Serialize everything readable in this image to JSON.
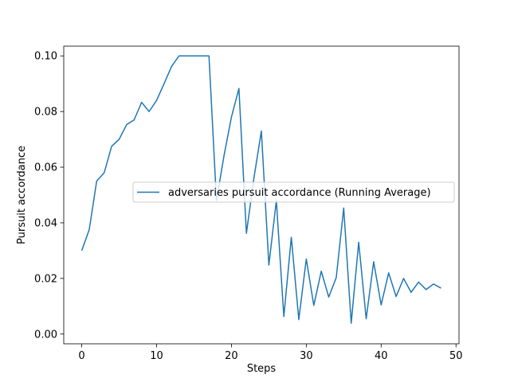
{
  "chart_data": {
    "type": "line",
    "xlabel": "Steps",
    "ylabel": "Pursuit accordance",
    "xlim": [
      -2.4,
      50.4
    ],
    "ylim": [
      -0.0035,
      0.1035
    ],
    "xticks": [
      0,
      10,
      20,
      30,
      40,
      50
    ],
    "yticks": [
      0.0,
      0.02,
      0.04,
      0.06,
      0.08,
      0.1
    ],
    "xtick_labels": [
      "0",
      "10",
      "20",
      "30",
      "40",
      "50"
    ],
    "ytick_labels": [
      "0.00",
      "0.02",
      "0.04",
      "0.06",
      "0.08",
      "0.10"
    ],
    "grid": false,
    "legend_position": "center-right",
    "series": [
      {
        "name": "adversaries pursuit accordance (Running Average)",
        "color": "#1f77b4",
        "x": [
          0,
          1,
          2,
          3,
          4,
          5,
          6,
          7,
          8,
          9,
          10,
          11,
          12,
          13,
          14,
          15,
          16,
          17,
          18,
          19,
          20,
          21,
          22,
          23,
          24,
          25,
          26,
          27,
          28,
          29,
          30,
          31,
          32,
          33,
          34,
          35,
          36,
          37,
          38,
          39,
          40,
          41,
          42,
          43,
          44,
          45,
          46,
          47,
          48
        ],
        "values": [
          0.03,
          0.0375,
          0.055,
          0.058,
          0.0675,
          0.07,
          0.0753,
          0.077,
          0.0833,
          0.08,
          0.084,
          0.09,
          0.0962,
          0.1,
          0.1,
          0.1,
          0.1,
          0.1,
          0.048,
          0.064,
          0.078,
          0.0883,
          0.0362,
          0.056,
          0.073,
          0.0248,
          0.048,
          0.0063,
          0.0348,
          0.0052,
          0.027,
          0.0103,
          0.0226,
          0.0133,
          0.0203,
          0.0453,
          0.0039,
          0.033,
          0.0055,
          0.026,
          0.0105,
          0.022,
          0.0135,
          0.02,
          0.015,
          0.0187,
          0.016,
          0.018,
          0.0165
        ]
      }
    ]
  }
}
